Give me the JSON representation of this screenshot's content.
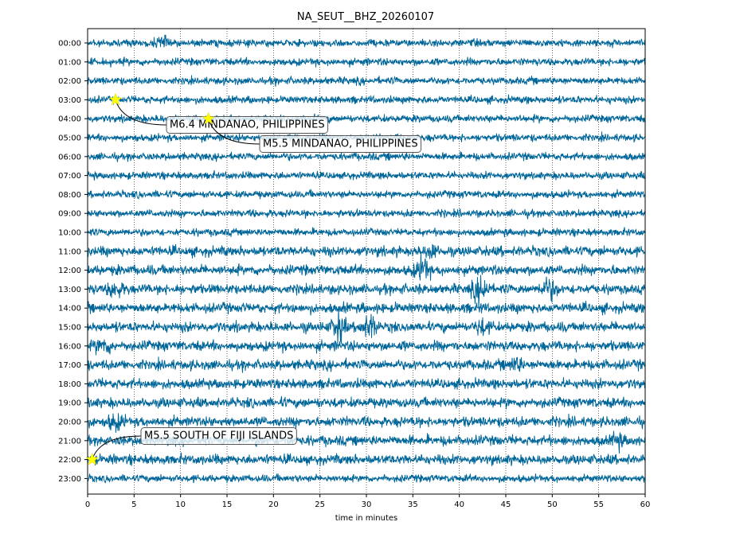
{
  "chart_data": {
    "type": "line",
    "subtype": "helicorder",
    "title": "NA_SEUT__BHZ_20260107",
    "xlabel": "time in minutes",
    "ylabel": "",
    "xlim": [
      0,
      60
    ],
    "x_ticks": [
      0,
      5,
      10,
      15,
      20,
      25,
      30,
      35,
      40,
      45,
      50,
      55,
      60
    ],
    "grid": "vertical dotted at each x tick",
    "trace_color": "#006699",
    "rows": [
      "00:00",
      "01:00",
      "02:00",
      "03:00",
      "04:00",
      "05:00",
      "06:00",
      "07:00",
      "08:00",
      "09:00",
      "10:00",
      "11:00",
      "12:00",
      "13:00",
      "14:00",
      "15:00",
      "16:00",
      "17:00",
      "18:00",
      "19:00",
      "20:00",
      "21:00",
      "22:00",
      "23:00"
    ],
    "events": [
      {
        "label": "M6.4 MINDANAO, PHILIPPINES",
        "hour": 3,
        "minute": 3.0
      },
      {
        "label": "M5.5 MINDANAO, PHILIPPINES",
        "hour": 4,
        "minute": 13.0
      },
      {
        "label": "M5.5 SOUTH OF FIJI ISLANDS",
        "hour": 22,
        "minute": 0.5
      }
    ],
    "marker_color": "#ffff00",
    "bursts": [
      {
        "hour": 0,
        "minute": 8.0,
        "strength": 1.6
      },
      {
        "hour": 11,
        "minute": 37.0,
        "strength": 1.3
      },
      {
        "hour": 12,
        "minute": 36.0,
        "strength": 2.6
      },
      {
        "hour": 13,
        "minute": 3.0,
        "strength": 1.8
      },
      {
        "hour": 13,
        "minute": 42.3,
        "strength": 3.0
      },
      {
        "hour": 13,
        "minute": 49.6,
        "strength": 2.4
      },
      {
        "hour": 15,
        "minute": 27.0,
        "strength": 3.0
      },
      {
        "hour": 15,
        "minute": 30.3,
        "strength": 2.6
      },
      {
        "hour": 15,
        "minute": 42.5,
        "strength": 1.5
      },
      {
        "hour": 16,
        "minute": 1.7,
        "strength": 1.6
      },
      {
        "hour": 17,
        "minute": 46.0,
        "strength": 1.4
      },
      {
        "hour": 20,
        "minute": 3.0,
        "strength": 1.6
      },
      {
        "hour": 21,
        "minute": 57.0,
        "strength": 1.4
      }
    ]
  }
}
